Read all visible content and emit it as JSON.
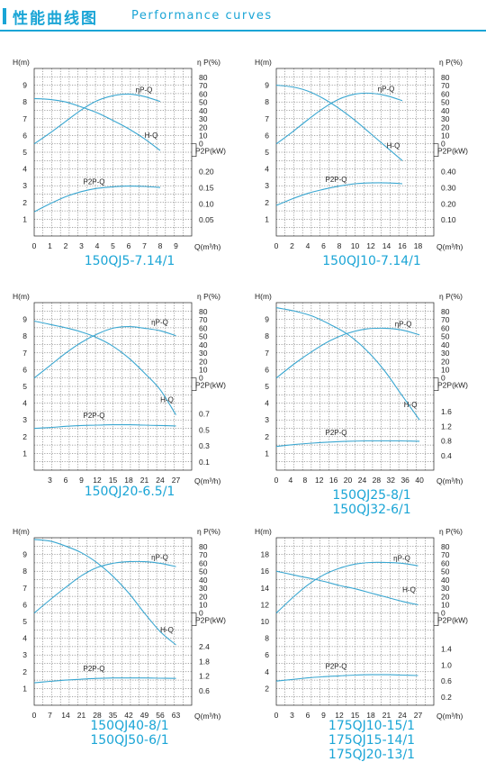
{
  "header": {
    "title": "性能曲线图",
    "subtitle": "Performance curves"
  },
  "axis_labels": {
    "h": "H(m)",
    "eta": "η P(%)",
    "p": "P2P(kW)",
    "q": "Q(m³/h)"
  },
  "colors": {
    "accent": "#1aa5d6",
    "curve": "#3aa7d1"
  },
  "chart_data": [
    {
      "type": "line",
      "models": [
        "150QJ5-7.14/1"
      ],
      "x_ticks": [
        0,
        1,
        2,
        3,
        4,
        5,
        6,
        7,
        8,
        9
      ],
      "xlim": [
        0,
        10
      ],
      "h_ticks": [
        1,
        2,
        3,
        4,
        5,
        6,
        7,
        8,
        9
      ],
      "h_lim": [
        0,
        10
      ],
      "eta_ticks": [
        0,
        10,
        20,
        30,
        40,
        50,
        60,
        70,
        80
      ],
      "p_ticks": [
        0.05,
        0.1,
        0.15,
        0.2,
        0.25
      ],
      "p_tick_labels": [
        "0.05",
        "0.10",
        "0.15",
        "0.20",
        ""
      ],
      "p_max": 0.25,
      "series": [
        {
          "name": "H-Q",
          "axis": "h",
          "x": [
            0,
            1,
            2,
            3,
            4,
            5,
            6,
            7,
            8
          ],
          "values": [
            8.2,
            8.15,
            8.0,
            7.7,
            7.35,
            6.9,
            6.4,
            5.8,
            5.1
          ]
        },
        {
          "name": "ηP-Q",
          "axis": "eta",
          "x": [
            0,
            1,
            2,
            3,
            4,
            5,
            6,
            7,
            8
          ],
          "values": [
            0,
            13,
            27,
            41,
            52,
            58,
            60,
            57,
            51
          ]
        },
        {
          "name": "P2P-Q",
          "axis": "p",
          "x": [
            0,
            1,
            2,
            3,
            4,
            5,
            6,
            7,
            8
          ],
          "values": [
            0.075,
            0.1,
            0.122,
            0.138,
            0.148,
            0.153,
            0.155,
            0.154,
            0.151
          ]
        }
      ]
    },
    {
      "type": "line",
      "models": [
        "150QJ10-7.14/1"
      ],
      "x_ticks": [
        0,
        2,
        4,
        6,
        8,
        10,
        12,
        14,
        16,
        18
      ],
      "xlim": [
        0,
        20
      ],
      "h_ticks": [
        1,
        2,
        3,
        4,
        5,
        6,
        7,
        8,
        9
      ],
      "h_lim": [
        0,
        10
      ],
      "eta_ticks": [
        0,
        10,
        20,
        30,
        40,
        50,
        60,
        70,
        80
      ],
      "p_ticks": [
        0.1,
        0.2,
        0.3,
        0.4,
        0.5
      ],
      "p_tick_labels": [
        "0.10",
        "0.20",
        "0.30",
        "0.40",
        ""
      ],
      "p_max": 0.5,
      "series": [
        {
          "name": "H-Q",
          "axis": "h",
          "x": [
            0,
            2,
            4,
            6,
            8,
            10,
            12,
            14,
            16
          ],
          "values": [
            9.0,
            8.9,
            8.65,
            8.2,
            7.6,
            6.9,
            6.1,
            5.3,
            4.5
          ]
        },
        {
          "name": "ηP-Q",
          "axis": "eta",
          "x": [
            0,
            2,
            4,
            6,
            8,
            10,
            12,
            14,
            16
          ],
          "values": [
            0,
            14,
            29,
            43,
            54,
            60,
            61,
            58,
            52
          ]
        },
        {
          "name": "P2P-Q",
          "axis": "p",
          "x": [
            0,
            2,
            4,
            6,
            8,
            10,
            12,
            14,
            16
          ],
          "values": [
            0.19,
            0.23,
            0.265,
            0.29,
            0.31,
            0.325,
            0.33,
            0.33,
            0.325
          ]
        }
      ]
    },
    {
      "type": "line",
      "models": [
        "150QJ20-6.5/1"
      ],
      "x_ticks": [
        3,
        6,
        9,
        12,
        15,
        18,
        21,
        24,
        27
      ],
      "xlim": [
        0,
        30
      ],
      "h_ticks": [
        1,
        2,
        3,
        4,
        5,
        6,
        7,
        8,
        9
      ],
      "h_lim": [
        0,
        10
      ],
      "eta_ticks": [
        0,
        10,
        20,
        30,
        40,
        50,
        60,
        70,
        80
      ],
      "p_ticks": [
        0.1,
        0.3,
        0.5,
        0.7,
        0.9
      ],
      "p_tick_labels": [
        "0.1",
        "0.3",
        "0.5",
        "0.7",
        ""
      ],
      "p_max": 1.0,
      "series": [
        {
          "name": "H-Q",
          "axis": "h",
          "x": [
            0,
            3,
            6,
            9,
            12,
            15,
            18,
            21,
            24,
            27
          ],
          "values": [
            8.9,
            8.7,
            8.5,
            8.25,
            7.9,
            7.4,
            6.7,
            5.8,
            4.8,
            3.3
          ]
        },
        {
          "name": "ηP-Q",
          "axis": "eta",
          "x": [
            0,
            3,
            6,
            9,
            12,
            15,
            18,
            21,
            24,
            27
          ],
          "values": [
            0,
            15,
            30,
            43,
            53,
            60,
            62,
            60,
            57,
            51
          ]
        },
        {
          "name": "P2P-Q",
          "axis": "p",
          "x": [
            0,
            3,
            6,
            9,
            12,
            15,
            18,
            21,
            24,
            27
          ],
          "values": [
            0.52,
            0.53,
            0.545,
            0.555,
            0.56,
            0.565,
            0.565,
            0.56,
            0.555,
            0.55
          ]
        }
      ]
    },
    {
      "type": "line",
      "models": [
        "150QJ25-8/1",
        "150QJ32-6/1"
      ],
      "x_ticks": [
        0,
        4,
        8,
        12,
        16,
        20,
        24,
        28,
        32,
        36,
        40
      ],
      "xlim": [
        0,
        44
      ],
      "h_ticks": [
        1,
        2,
        3,
        4,
        5,
        6,
        7,
        8,
        9
      ],
      "h_lim": [
        0,
        10
      ],
      "eta_ticks": [
        0,
        10,
        20,
        30,
        40,
        50,
        60,
        70,
        80
      ],
      "p_ticks": [
        0.4,
        0.8,
        1.2,
        1.6,
        2.0
      ],
      "p_tick_labels": [
        "0.4",
        "0.8",
        "1.2",
        "1.6",
        ""
      ],
      "p_max": 2.2,
      "series": [
        {
          "name": "H-Q",
          "axis": "h",
          "x": [
            0,
            5,
            10,
            15,
            20,
            25,
            30,
            35,
            40
          ],
          "values": [
            9.7,
            9.5,
            9.2,
            8.7,
            8.1,
            7.2,
            6.0,
            4.5,
            3.0
          ]
        },
        {
          "name": "ηP-Q",
          "axis": "eta",
          "x": [
            0,
            5,
            10,
            15,
            20,
            25,
            30,
            35,
            40
          ],
          "values": [
            0,
            17,
            32,
            45,
            54,
            59,
            60,
            58,
            52
          ]
        },
        {
          "name": "P2P-Q",
          "axis": "p",
          "x": [
            0,
            5,
            10,
            15,
            20,
            25,
            30,
            35,
            40
          ],
          "values": [
            0.65,
            0.7,
            0.74,
            0.77,
            0.79,
            0.8,
            0.8,
            0.8,
            0.79
          ]
        }
      ]
    },
    {
      "type": "line",
      "models": [
        "150QJ40-8/1",
        "150QJ50-6/1"
      ],
      "x_ticks": [
        0,
        7,
        14,
        21,
        28,
        35,
        42,
        49,
        56,
        63
      ],
      "xlim": [
        0,
        70
      ],
      "h_ticks": [
        1,
        2,
        3,
        4,
        5,
        6,
        7,
        8,
        9
      ],
      "h_lim": [
        0,
        10
      ],
      "eta_ticks": [
        0,
        10,
        20,
        30,
        40,
        50,
        60,
        70,
        80
      ],
      "p_ticks": [
        0.6,
        1.2,
        1.8,
        2.4,
        3.0
      ],
      "p_tick_labels": [
        "0.6",
        "1.2",
        "1.8",
        "2.4",
        ""
      ],
      "p_max": 3.3,
      "series": [
        {
          "name": "H-Q",
          "axis": "h",
          "x": [
            0,
            7,
            14,
            21,
            28,
            35,
            42,
            49,
            56,
            63
          ],
          "values": [
            9.9,
            9.8,
            9.5,
            9.1,
            8.5,
            7.7,
            6.7,
            5.5,
            4.4,
            3.6
          ]
        },
        {
          "name": "ηP-Q",
          "axis": "eta",
          "x": [
            0,
            7,
            14,
            21,
            28,
            35,
            42,
            49,
            56,
            63
          ],
          "values": [
            0,
            16,
            31,
            45,
            55,
            60,
            62,
            62,
            60,
            56
          ]
        },
        {
          "name": "P2P-Q",
          "axis": "p",
          "x": [
            0,
            7,
            14,
            21,
            28,
            35,
            42,
            49,
            56,
            63
          ],
          "values": [
            0.92,
            0.98,
            1.03,
            1.07,
            1.1,
            1.12,
            1.12,
            1.12,
            1.11,
            1.1
          ]
        }
      ]
    },
    {
      "type": "line",
      "models": [
        "175QJ10-15/1",
        "175QJ15-14/1",
        "175QJ20-13/1"
      ],
      "x_ticks": [
        0,
        3,
        6,
        9,
        12,
        15,
        18,
        21,
        24,
        27
      ],
      "xlim": [
        0,
        30
      ],
      "h_ticks": [
        2,
        4,
        6,
        8,
        10,
        12,
        14,
        16,
        18
      ],
      "h_lim": [
        0,
        20
      ],
      "eta_ticks": [
        0,
        10,
        20,
        30,
        40,
        50,
        60,
        70,
        80
      ],
      "p_ticks": [
        0.2,
        0.6,
        1.0,
        1.4,
        1.8
      ],
      "p_tick_labels": [
        "0.2",
        "0.6",
        "1.0",
        "1.4",
        ""
      ],
      "p_max": 2.0,
      "series": [
        {
          "name": "H-Q",
          "axis": "h",
          "x": [
            0,
            3,
            6,
            9,
            12,
            15,
            18,
            21,
            24,
            27
          ],
          "values": [
            16.0,
            15.6,
            15.2,
            14.8,
            14.3,
            13.9,
            13.4,
            12.9,
            12.4,
            12.0
          ]
        },
        {
          "name": "ηP-Q",
          "axis": "eta",
          "x": [
            0,
            3,
            6,
            9,
            12,
            15,
            18,
            21,
            24,
            27
          ],
          "values": [
            0,
            18,
            34,
            46,
            54,
            59,
            61,
            61,
            60,
            57
          ]
        },
        {
          "name": "P2P-Q",
          "axis": "p",
          "x": [
            0,
            3,
            6,
            9,
            12,
            15,
            18,
            21,
            24,
            27
          ],
          "values": [
            0.6,
            0.64,
            0.68,
            0.71,
            0.73,
            0.75,
            0.76,
            0.76,
            0.75,
            0.74
          ]
        }
      ]
    }
  ]
}
